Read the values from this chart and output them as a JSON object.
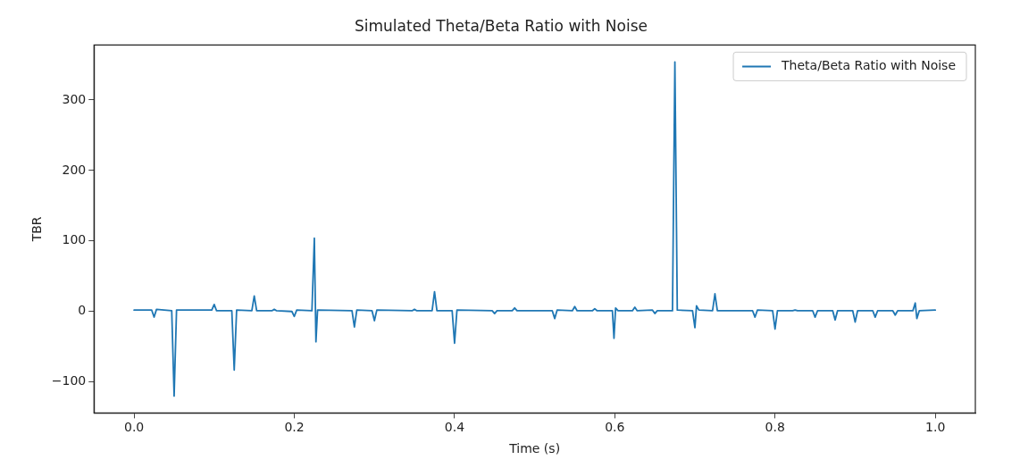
{
  "chart_data": {
    "type": "line",
    "title": "Simulated Theta/Beta Ratio with Noise",
    "xlabel": "Time (s)",
    "ylabel": "TBR",
    "series": [
      {
        "name": "Theta/Beta Ratio with Noise",
        "color": "#1f77b4",
        "x": [
          0,
          0.022,
          0.025,
          0.028,
          0.047,
          0.05,
          0.053,
          0.097,
          0.1,
          0.103,
          0.122,
          0.125,
          0.128,
          0.147,
          0.15,
          0.153,
          0.172,
          0.175,
          0.178,
          0.197,
          0.2,
          0.203,
          0.222,
          0.225,
          0.227,
          0.229,
          0.272,
          0.275,
          0.278,
          0.297,
          0.3,
          0.303,
          0.347,
          0.35,
          0.353,
          0.372,
          0.375,
          0.378,
          0.397,
          0.4,
          0.403,
          0.447,
          0.45,
          0.453,
          0.472,
          0.475,
          0.478,
          0.522,
          0.525,
          0.528,
          0.547,
          0.55,
          0.553,
          0.572,
          0.575,
          0.578,
          0.597,
          0.599,
          0.601,
          0.604,
          0.622,
          0.625,
          0.628,
          0.647,
          0.65,
          0.653,
          0.672,
          0.675,
          0.678,
          0.697,
          0.7,
          0.702,
          0.705,
          0.722,
          0.725,
          0.728,
          0.772,
          0.775,
          0.778,
          0.797,
          0.8,
          0.803,
          0.822,
          0.825,
          0.828,
          0.847,
          0.85,
          0.853,
          0.872,
          0.875,
          0.878,
          0.897,
          0.9,
          0.903,
          0.922,
          0.925,
          0.928,
          0.947,
          0.95,
          0.953,
          0.972,
          0.975,
          0.977,
          0.98,
          1.0
        ],
        "values": [
          2,
          2,
          -8,
          3,
          1,
          -120,
          2,
          2,
          10,
          1,
          1,
          -83,
          2,
          1,
          22,
          1,
          1,
          3,
          1,
          0,
          -7,
          2,
          1,
          104,
          -43,
          2,
          1,
          -22,
          2,
          1,
          -13,
          2,
          1,
          3,
          1,
          1,
          28,
          1,
          1,
          -45,
          2,
          1,
          -3,
          1,
          1,
          5,
          1,
          1,
          -10,
          2,
          1,
          7,
          1,
          1,
          4,
          1,
          1,
          -38,
          5,
          1,
          1,
          6,
          1,
          2,
          -3,
          1,
          1,
          354,
          2,
          1,
          -23,
          8,
          2,
          1,
          25,
          1,
          1,
          -8,
          2,
          1,
          -25,
          1,
          1,
          2,
          1,
          1,
          -8,
          1,
          1,
          -12,
          1,
          1,
          -15,
          1,
          1,
          -8,
          1,
          1,
          -5,
          1,
          1,
          12,
          -10,
          1,
          2
        ]
      }
    ],
    "xlim": [
      -0.05,
      1.05
    ],
    "ylim": [
      -144,
      378
    ],
    "xticks": [
      {
        "value": 0,
        "label": "0.0"
      },
      {
        "value": 0.2,
        "label": "0.2"
      },
      {
        "value": 0.4,
        "label": "0.4"
      },
      {
        "value": 0.6,
        "label": "0.6"
      },
      {
        "value": 0.8,
        "label": "0.8"
      },
      {
        "value": 1,
        "label": "1.0"
      }
    ],
    "yticks": [
      {
        "value": -100,
        "label": "−100"
      },
      0,
      100,
      200,
      300
    ],
    "grid": false,
    "legend": "top right",
    "marker": "none",
    "line_style": "solid"
  }
}
